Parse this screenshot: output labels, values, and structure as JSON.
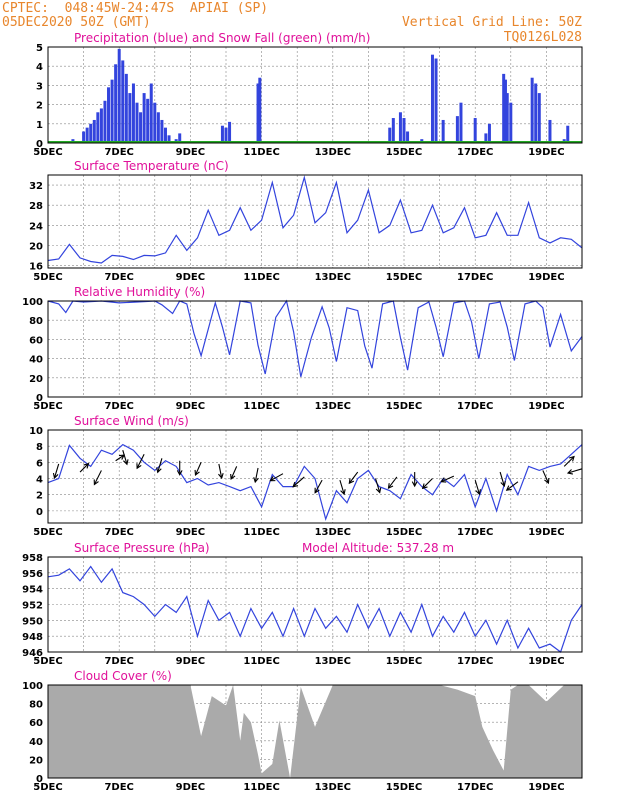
{
  "header": {
    "station": "CPTEC:  048:45W-24:47S  APIAI (SP)",
    "run": "05DEC2020 50Z (GMT)",
    "grid_note": "Vertical Grid Line: 50Z",
    "code": "TQ0126L028"
  },
  "colors": {
    "header": "#e8862c",
    "title": "#e0109a",
    "line": "#3344dd",
    "snow": "#22aa22",
    "cloud": "#aaaaaa",
    "arrow": "#000000"
  },
  "x_ticks": [
    "5DEC",
    "7DEC",
    "9DEC",
    "11DEC",
    "13DEC",
    "15DEC",
    "17DEC",
    "19DEC"
  ],
  "chart_data": [
    {
      "type": "bar",
      "title": "Precipitation (blue) and Snow Fall (green) (mm/h)",
      "ylim": [
        0,
        5
      ],
      "yticks": [
        "0",
        "1",
        "2",
        "3",
        "4",
        "5"
      ],
      "x_unit": "days since 5DEC",
      "xlim": [
        0,
        15
      ],
      "series": [
        {
          "name": "Precipitation",
          "color": "#3344dd",
          "points": [
            [
              0.4,
              0.1
            ],
            [
              0.7,
              0.2
            ],
            [
              1.0,
              0.6
            ],
            [
              1.1,
              0.8
            ],
            [
              1.2,
              1.0
            ],
            [
              1.3,
              1.2
            ],
            [
              1.4,
              1.6
            ],
            [
              1.5,
              1.8
            ],
            [
              1.6,
              2.2
            ],
            [
              1.7,
              2.9
            ],
            [
              1.8,
              3.3
            ],
            [
              1.9,
              4.1
            ],
            [
              2.0,
              4.9
            ],
            [
              2.1,
              4.3
            ],
            [
              2.2,
              3.6
            ],
            [
              2.3,
              2.6
            ],
            [
              2.4,
              3.1
            ],
            [
              2.5,
              2.1
            ],
            [
              2.6,
              1.6
            ],
            [
              2.7,
              2.6
            ],
            [
              2.8,
              2.3
            ],
            [
              2.9,
              3.1
            ],
            [
              3.0,
              2.1
            ],
            [
              3.1,
              1.6
            ],
            [
              3.2,
              1.2
            ],
            [
              3.3,
              0.8
            ],
            [
              3.4,
              0.4
            ],
            [
              3.6,
              0.2
            ],
            [
              3.7,
              0.5
            ],
            [
              4.9,
              0.9
            ],
            [
              5.0,
              0.8
            ],
            [
              5.1,
              1.1
            ],
            [
              5.9,
              3.1
            ],
            [
              5.95,
              3.4
            ],
            [
              9.6,
              0.8
            ],
            [
              9.7,
              1.3
            ],
            [
              9.9,
              1.6
            ],
            [
              10.0,
              1.3
            ],
            [
              10.1,
              0.6
            ],
            [
              10.5,
              0.2
            ],
            [
              10.8,
              4.6
            ],
            [
              10.9,
              4.4
            ],
            [
              11.1,
              1.2
            ],
            [
              11.5,
              1.4
            ],
            [
              11.6,
              2.1
            ],
            [
              12.0,
              1.3
            ],
            [
              12.3,
              0.5
            ],
            [
              12.4,
              1.0
            ],
            [
              12.8,
              3.6
            ],
            [
              12.85,
              3.3
            ],
            [
              12.9,
              2.6
            ],
            [
              13.0,
              2.1
            ],
            [
              13.6,
              3.4
            ],
            [
              13.7,
              3.1
            ],
            [
              13.8,
              2.6
            ],
            [
              14.1,
              1.2
            ],
            [
              14.5,
              0.2
            ],
            [
              14.6,
              0.9
            ]
          ]
        },
        {
          "name": "Snow Fall",
          "color": "#22aa22",
          "values": "0"
        }
      ]
    },
    {
      "type": "line",
      "title": "Surface Temperature (nC)",
      "ylim": [
        15.5,
        34
      ],
      "yticks": [
        "16",
        "20",
        "24",
        "28",
        "32"
      ],
      "ytick_values": [
        16,
        20,
        24,
        28,
        32
      ],
      "x": [
        0,
        0.3,
        0.6,
        0.9,
        1.2,
        1.5,
        1.8,
        2.1,
        2.4,
        2.7,
        3.0,
        3.3,
        3.6,
        3.9,
        4.2,
        4.5,
        4.8,
        5.1,
        5.4,
        5.7,
        6.0,
        6.3,
        6.6,
        6.9,
        7.2,
        7.5,
        7.8,
        8.1,
        8.4,
        8.7,
        9.0,
        9.3,
        9.6,
        9.9,
        10.2,
        10.5,
        10.8,
        11.1,
        11.4,
        11.7,
        12.0,
        12.3,
        12.6,
        12.9,
        13.2,
        13.5,
        13.8,
        14.1,
        14.4,
        14.7,
        15.0
      ],
      "y": [
        17.0,
        17.3,
        20.2,
        17.5,
        16.8,
        16.5,
        18.0,
        17.8,
        17.2,
        18.0,
        17.9,
        18.5,
        22.0,
        19.0,
        21.5,
        27.0,
        22.0,
        23.0,
        27.5,
        23.0,
        25.0,
        32.5,
        23.5,
        26.0,
        33.5,
        24.5,
        26.5,
        32.5,
        22.5,
        25.0,
        31.0,
        22.5,
        24.0,
        29.0,
        22.5,
        23.0,
        28.0,
        22.5,
        23.5,
        27.5,
        21.5,
        22.0,
        26.5,
        22.0,
        22.0,
        28.5,
        21.5,
        20.5,
        21.5,
        21.2,
        19.5
      ]
    },
    {
      "type": "line",
      "title": "Relative Humidity (%)",
      "ylim": [
        0,
        100
      ],
      "yticks": [
        "0",
        "20",
        "40",
        "60",
        "80",
        "100"
      ],
      "ytick_values": [
        0,
        20,
        40,
        60,
        80,
        100
      ],
      "x": [
        0.0,
        0.3,
        0.5,
        0.7,
        1.0,
        1.5,
        2.0,
        2.5,
        3.0,
        3.2,
        3.5,
        3.7,
        3.9,
        4.1,
        4.3,
        4.7,
        4.9,
        5.1,
        5.4,
        5.7,
        5.9,
        6.1,
        6.4,
        6.7,
        6.9,
        7.1,
        7.4,
        7.7,
        7.9,
        8.1,
        8.4,
        8.7,
        8.9,
        9.1,
        9.4,
        9.7,
        9.9,
        10.1,
        10.4,
        10.7,
        10.9,
        11.1,
        11.4,
        11.7,
        11.9,
        12.1,
        12.4,
        12.7,
        12.9,
        13.1,
        13.4,
        13.7,
        13.9,
        14.1,
        14.4,
        14.7,
        15.0
      ],
      "y": [
        100,
        97,
        88,
        100,
        99,
        100,
        98,
        99,
        100,
        96,
        87,
        100,
        97,
        66,
        43,
        98,
        73,
        44,
        100,
        98,
        54,
        24,
        83,
        100,
        68,
        21,
        62,
        94,
        72,
        37,
        93,
        90,
        53,
        30,
        97,
        100,
        62,
        28,
        93,
        99,
        73,
        42,
        98,
        100,
        78,
        40,
        97,
        99,
        73,
        38,
        97,
        100,
        93,
        52,
        86,
        48,
        63
      ]
    },
    {
      "type": "line",
      "title": "Surface Wind (m/s)",
      "ylim": [
        -1.5,
        10
      ],
      "yticks": [
        "0",
        "2",
        "4",
        "6",
        "8",
        "10"
      ],
      "ytick_values": [
        0,
        2,
        4,
        6,
        8,
        10
      ],
      "x": [
        0.0,
        0.3,
        0.6,
        0.9,
        1.2,
        1.5,
        1.8,
        2.1,
        2.4,
        2.7,
        3.0,
        3.3,
        3.6,
        3.9,
        4.2,
        4.5,
        4.8,
        5.1,
        5.4,
        5.7,
        6.0,
        6.3,
        6.6,
        6.9,
        7.2,
        7.5,
        7.8,
        8.1,
        8.4,
        8.7,
        9.0,
        9.3,
        9.6,
        9.9,
        10.2,
        10.5,
        10.8,
        11.1,
        11.4,
        11.7,
        12.0,
        12.3,
        12.6,
        12.9,
        13.2,
        13.5,
        13.8,
        14.1,
        14.4,
        14.7,
        15.0
      ],
      "y": [
        3.5,
        4.0,
        8.1,
        6.5,
        5.5,
        7.5,
        7.0,
        8.2,
        7.5,
        6.0,
        5.0,
        6.2,
        5.5,
        3.5,
        4.0,
        3.2,
        3.5,
        3.0,
        2.5,
        3.0,
        0.5,
        4.5,
        3.0,
        3.0,
        5.5,
        4.0,
        -1.0,
        2.5,
        1.0,
        4.0,
        5.0,
        3.0,
        2.5,
        1.5,
        4.5,
        3.0,
        2.0,
        4.0,
        3.0,
        4.5,
        0.5,
        4.0,
        0.0,
        4.5,
        2.0,
        5.5,
        5.0,
        5.5,
        5.8,
        7.0,
        8.2
      ],
      "arrows": [
        [
          0.3,
          5.8,
          -0.3,
          -1.0
        ],
        [
          0.9,
          4.8,
          0.6,
          0.6
        ],
        [
          1.5,
          5.0,
          -0.5,
          -1.0
        ],
        [
          1.9,
          6.2,
          0.6,
          0.4
        ],
        [
          2.1,
          7.5,
          0.3,
          -1.0
        ],
        [
          2.7,
          7.0,
          -0.5,
          -1.0
        ],
        [
          3.2,
          6.5,
          -0.3,
          -1.0
        ],
        [
          3.7,
          6.2,
          0.0,
          -1.0
        ],
        [
          4.3,
          6.0,
          -0.4,
          -0.9
        ],
        [
          4.8,
          5.8,
          0.2,
          -1.0
        ],
        [
          5.3,
          5.5,
          -0.4,
          -0.9
        ],
        [
          5.9,
          5.3,
          -0.2,
          -1.0
        ],
        [
          6.6,
          4.6,
          -0.9,
          -0.5
        ],
        [
          7.2,
          4.2,
          -0.8,
          -0.7
        ],
        [
          7.7,
          3.8,
          -0.5,
          -0.9
        ],
        [
          8.2,
          3.8,
          0.3,
          -1.0
        ],
        [
          8.7,
          4.8,
          -0.6,
          -0.8
        ],
        [
          9.2,
          4.0,
          0.3,
          -1.0
        ],
        [
          9.8,
          4.2,
          -0.6,
          -0.8
        ],
        [
          10.3,
          4.8,
          0.0,
          -1.0
        ],
        [
          10.8,
          4.0,
          -0.7,
          -0.7
        ],
        [
          11.4,
          4.3,
          -0.9,
          -0.4
        ],
        [
          12.0,
          3.8,
          0.3,
          -1.0
        ],
        [
          12.7,
          4.8,
          0.3,
          -1.0
        ],
        [
          13.2,
          3.6,
          -0.8,
          -0.6
        ],
        [
          13.9,
          5.0,
          0.4,
          -0.9
        ],
        [
          14.5,
          5.5,
          0.7,
          0.7
        ],
        [
          15.0,
          5.2,
          -1.0,
          -0.3
        ]
      ]
    },
    {
      "type": "line",
      "title": "Surface Pressure (hPa)",
      "annotation": "Model Altitude: 537.28 m",
      "ylim": [
        946,
        958
      ],
      "yticks": [
        "946",
        "948",
        "950",
        "952",
        "954",
        "956",
        "958"
      ],
      "ytick_values": [
        946,
        948,
        950,
        952,
        954,
        956,
        958
      ],
      "x": [
        0.0,
        0.3,
        0.6,
        0.9,
        1.2,
        1.5,
        1.8,
        2.1,
        2.4,
        2.7,
        3.0,
        3.3,
        3.6,
        3.9,
        4.2,
        4.5,
        4.8,
        5.1,
        5.4,
        5.7,
        6.0,
        6.3,
        6.6,
        6.9,
        7.2,
        7.5,
        7.8,
        8.1,
        8.4,
        8.7,
        9.0,
        9.3,
        9.6,
        9.9,
        10.2,
        10.5,
        10.8,
        11.1,
        11.4,
        11.7,
        12.0,
        12.3,
        12.6,
        12.9,
        13.2,
        13.5,
        13.8,
        14.1,
        14.4,
        14.7,
        15.0
      ],
      "y": [
        955.5,
        955.7,
        956.5,
        955.0,
        956.8,
        954.8,
        956.5,
        953.5,
        953.0,
        952.0,
        950.5,
        952.0,
        951.0,
        953.0,
        948.0,
        952.5,
        950.0,
        951.0,
        948.0,
        951.5,
        949.0,
        951.0,
        948.0,
        951.5,
        948.0,
        951.5,
        949.0,
        950.5,
        948.5,
        952.0,
        949.0,
        951.5,
        948.0,
        951.0,
        948.5,
        952.0,
        948.0,
        950.5,
        948.5,
        951.0,
        948.0,
        950.0,
        947.0,
        950.0,
        946.5,
        949.0,
        946.5,
        947.0,
        946.0,
        950.0,
        952.0
      ]
    },
    {
      "type": "area",
      "title": "Cloud Cover (%)",
      "ylim": [
        0,
        100
      ],
      "yticks": [
        "0",
        "20",
        "40",
        "60",
        "80",
        "100"
      ],
      "ytick_values": [
        0,
        20,
        40,
        60,
        80,
        100
      ],
      "x": [
        0.0,
        2.0,
        4.0,
        4.3,
        4.6,
        5.0,
        5.2,
        5.4,
        5.5,
        5.7,
        5.9,
        6.0,
        6.3,
        6.5,
        6.8,
        7.1,
        7.5,
        8.0,
        9.0,
        10.5,
        11.0,
        11.5,
        12.0,
        12.2,
        12.5,
        12.8,
        13.0,
        13.2,
        13.5,
        14.0,
        14.5,
        15.0
      ],
      "y": [
        100,
        100,
        100,
        45,
        88,
        78,
        100,
        40,
        70,
        60,
        25,
        5,
        15,
        62,
        0,
        98,
        55,
        100,
        100,
        100,
        100,
        95,
        88,
        55,
        30,
        8,
        95,
        100,
        100,
        82,
        100,
        100
      ]
    }
  ]
}
